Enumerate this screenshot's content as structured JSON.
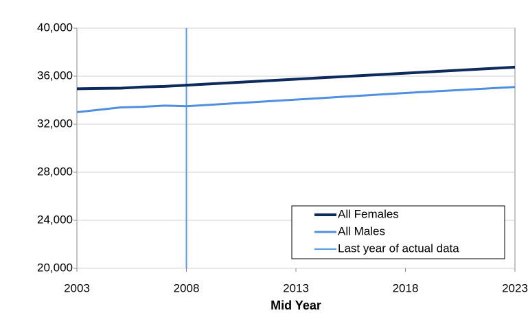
{
  "chart_data": {
    "type": "line",
    "x_label": "Mid Year",
    "x": [
      2003,
      2004,
      2005,
      2006,
      2007,
      2008,
      2009,
      2010,
      2011,
      2012,
      2013,
      2014,
      2015,
      2016,
      2017,
      2018,
      2019,
      2020,
      2021,
      2022,
      2023
    ],
    "series": [
      {
        "name": "All Females",
        "color": "#0d2a5c",
        "width": 4,
        "values": [
          34950,
          34980,
          35000,
          35100,
          35150,
          35250,
          35350,
          35450,
          35550,
          35650,
          35750,
          35850,
          35950,
          36050,
          36150,
          36250,
          36350,
          36450,
          36550,
          36650,
          36750
        ]
      },
      {
        "name": "All Males",
        "color": "#4f8fe0",
        "width": 3,
        "values": [
          33000,
          33200,
          33400,
          33450,
          33550,
          33500,
          33610,
          33720,
          33830,
          33940,
          34050,
          34160,
          34270,
          34380,
          34490,
          34600,
          34700,
          34800,
          34900,
          35000,
          35100
        ]
      }
    ],
    "reference_line": {
      "name": "Last year of actual data",
      "x": 2008,
      "color": "#5b9be0"
    },
    "xlim": [
      2003,
      2023
    ],
    "xticks": [
      2003,
      2008,
      2013,
      2018,
      2023
    ],
    "ylim": [
      20000,
      40000
    ],
    "yticks": [
      {
        "value": 20000,
        "label": "20,000"
      },
      {
        "value": 24000,
        "label": "24,000"
      },
      {
        "value": 28000,
        "label": "28,000"
      },
      {
        "value": 32000,
        "label": "32,000"
      },
      {
        "value": 36000,
        "label": "36,000"
      },
      {
        "value": 40000,
        "label": "40,000"
      }
    ],
    "grid": true,
    "legend": "bottom-right"
  }
}
